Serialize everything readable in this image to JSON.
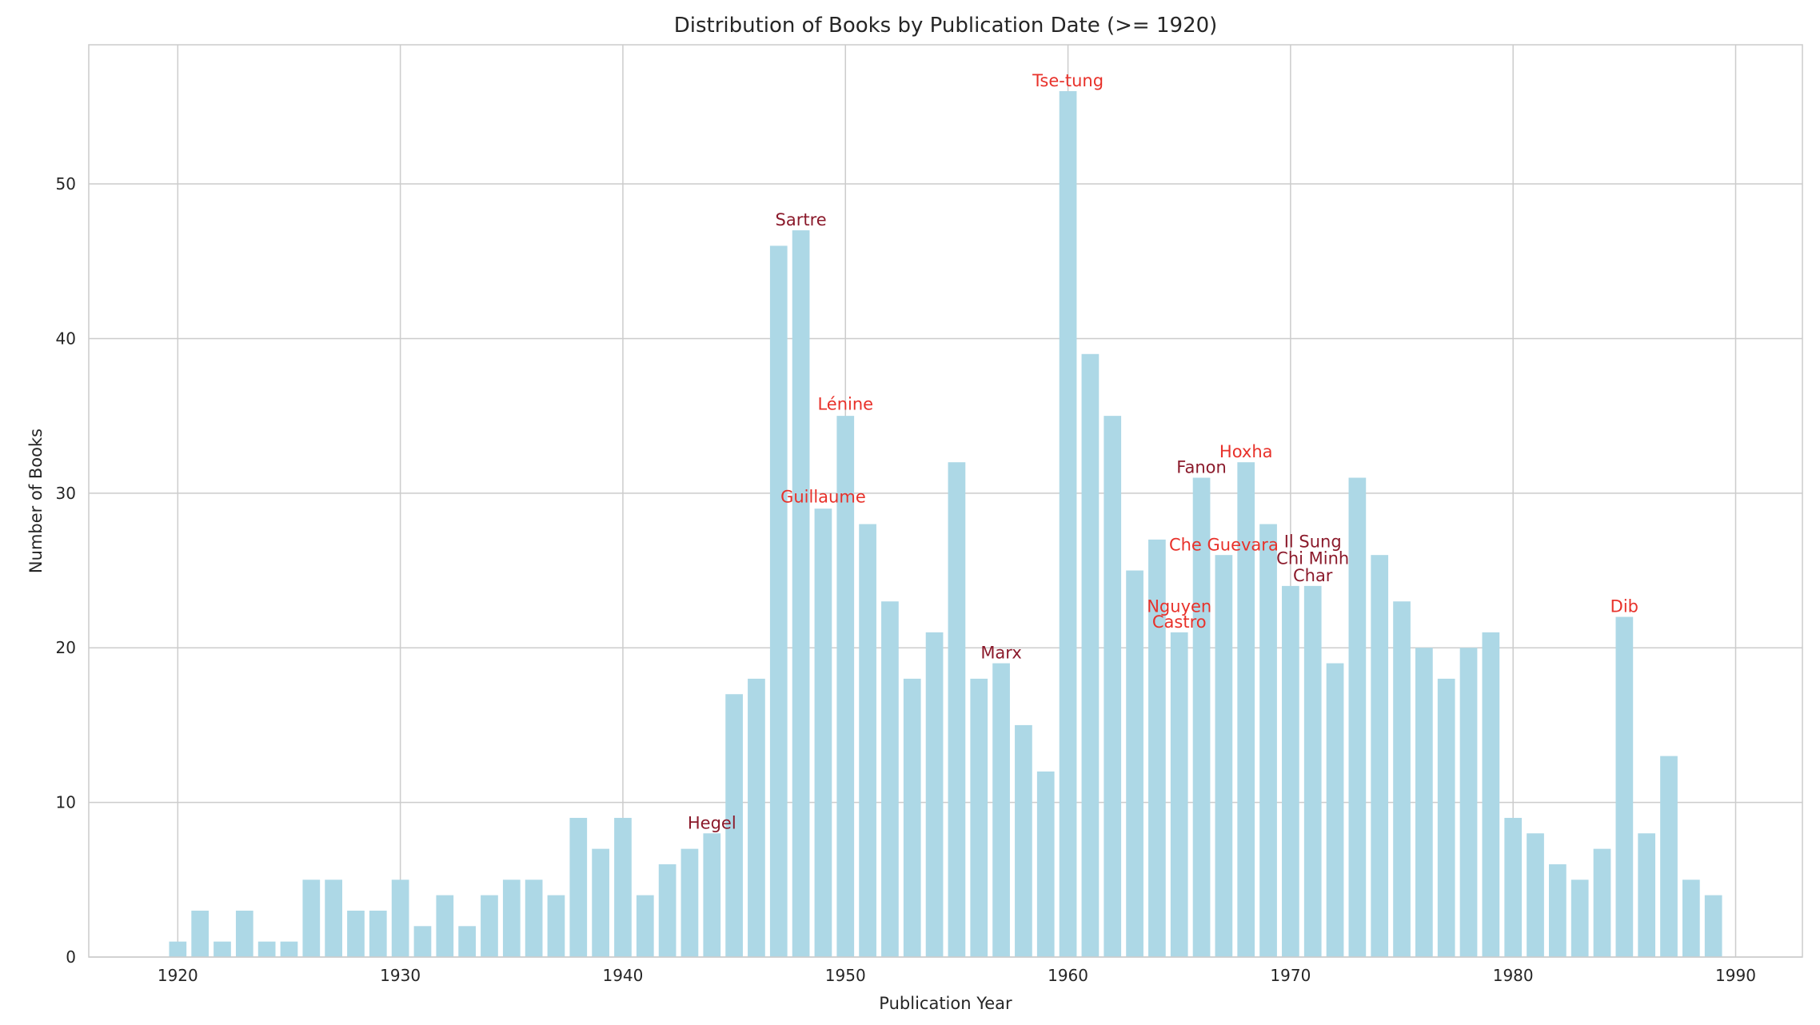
{
  "chart_data": {
    "type": "bar",
    "title": "Distribution of Books by Publication Date (>= 1920)",
    "xlabel": "Publication Year",
    "ylabel": "Number of Books",
    "xlim": [
      1916,
      1993
    ],
    "ylim": [
      0,
      59
    ],
    "xticks": [
      1920,
      1930,
      1940,
      1950,
      1960,
      1970,
      1980,
      1990
    ],
    "yticks": [
      0,
      10,
      20,
      30,
      40,
      50
    ],
    "grid": true,
    "bar_color": "#add8e6",
    "x": [
      1920,
      1921,
      1922,
      1923,
      1924,
      1925,
      1926,
      1927,
      1928,
      1929,
      1930,
      1931,
      1932,
      1933,
      1934,
      1935,
      1936,
      1937,
      1938,
      1939,
      1940,
      1941,
      1942,
      1943,
      1944,
      1945,
      1946,
      1947,
      1948,
      1949,
      1950,
      1951,
      1952,
      1953,
      1954,
      1955,
      1956,
      1957,
      1958,
      1959,
      1960,
      1961,
      1962,
      1963,
      1964,
      1965,
      1966,
      1967,
      1968,
      1969,
      1970,
      1971,
      1972,
      1973,
      1974,
      1975,
      1976,
      1977,
      1978,
      1979,
      1980,
      1981,
      1982,
      1983,
      1984,
      1985,
      1986,
      1987,
      1988,
      1989
    ],
    "values": [
      1,
      3,
      1,
      3,
      1,
      1,
      5,
      5,
      3,
      3,
      5,
      2,
      4,
      2,
      4,
      5,
      5,
      4,
      9,
      7,
      9,
      4,
      6,
      7,
      8,
      17,
      18,
      46,
      47,
      29,
      35,
      28,
      23,
      18,
      21,
      32,
      18,
      19,
      15,
      12,
      56,
      39,
      35,
      25,
      27,
      21,
      31,
      26,
      32,
      28,
      24,
      24,
      19,
      31,
      26,
      23,
      20,
      18,
      20,
      21,
      9,
      8,
      6,
      5,
      7,
      22,
      8,
      13,
      5,
      4
    ],
    "annotations": [
      {
        "text": "Hegel",
        "x": 1944,
        "y": 8.1,
        "color": "#8b1a2b"
      },
      {
        "text": "Sartre",
        "x": 1948,
        "y": 47.1,
        "color": "#8b1a2b"
      },
      {
        "text": "Lénine",
        "x": 1950,
        "y": 35.2,
        "color": "#e8312a"
      },
      {
        "text": "Guillaume",
        "x": 1949,
        "y": 29.2,
        "color": "#e8312a"
      },
      {
        "text": "Marx",
        "x": 1957,
        "y": 19.1,
        "color": "#8b1a2b"
      },
      {
        "text": "Tse-tung",
        "x": 1960,
        "y": 56.1,
        "color": "#e8312a"
      },
      {
        "text": "Fanon",
        "x": 1966,
        "y": 31.1,
        "color": "#8b1a2b"
      },
      {
        "text": "Hoxha",
        "x": 1968,
        "y": 32.1,
        "color": "#e8312a"
      },
      {
        "text": "Che Guevara",
        "x": 1967,
        "y": 26.1,
        "color": "#e8312a"
      },
      {
        "text": "Il Sung",
        "x": 1971,
        "y": 26.3,
        "color": "#8b1a2b"
      },
      {
        "text": "Chi Minh",
        "x": 1971,
        "y": 25.2,
        "color": "#8b1a2b"
      },
      {
        "text": "Char",
        "x": 1971,
        "y": 24.1,
        "color": "#8b1a2b"
      },
      {
        "text": "Nguyen",
        "x": 1965,
        "y": 22.1,
        "color": "#e8312a"
      },
      {
        "text": "Castro",
        "x": 1965,
        "y": 21.1,
        "color": "#e8312a"
      },
      {
        "text": "Dib",
        "x": 1985,
        "y": 22.1,
        "color": "#e8312a"
      }
    ]
  }
}
